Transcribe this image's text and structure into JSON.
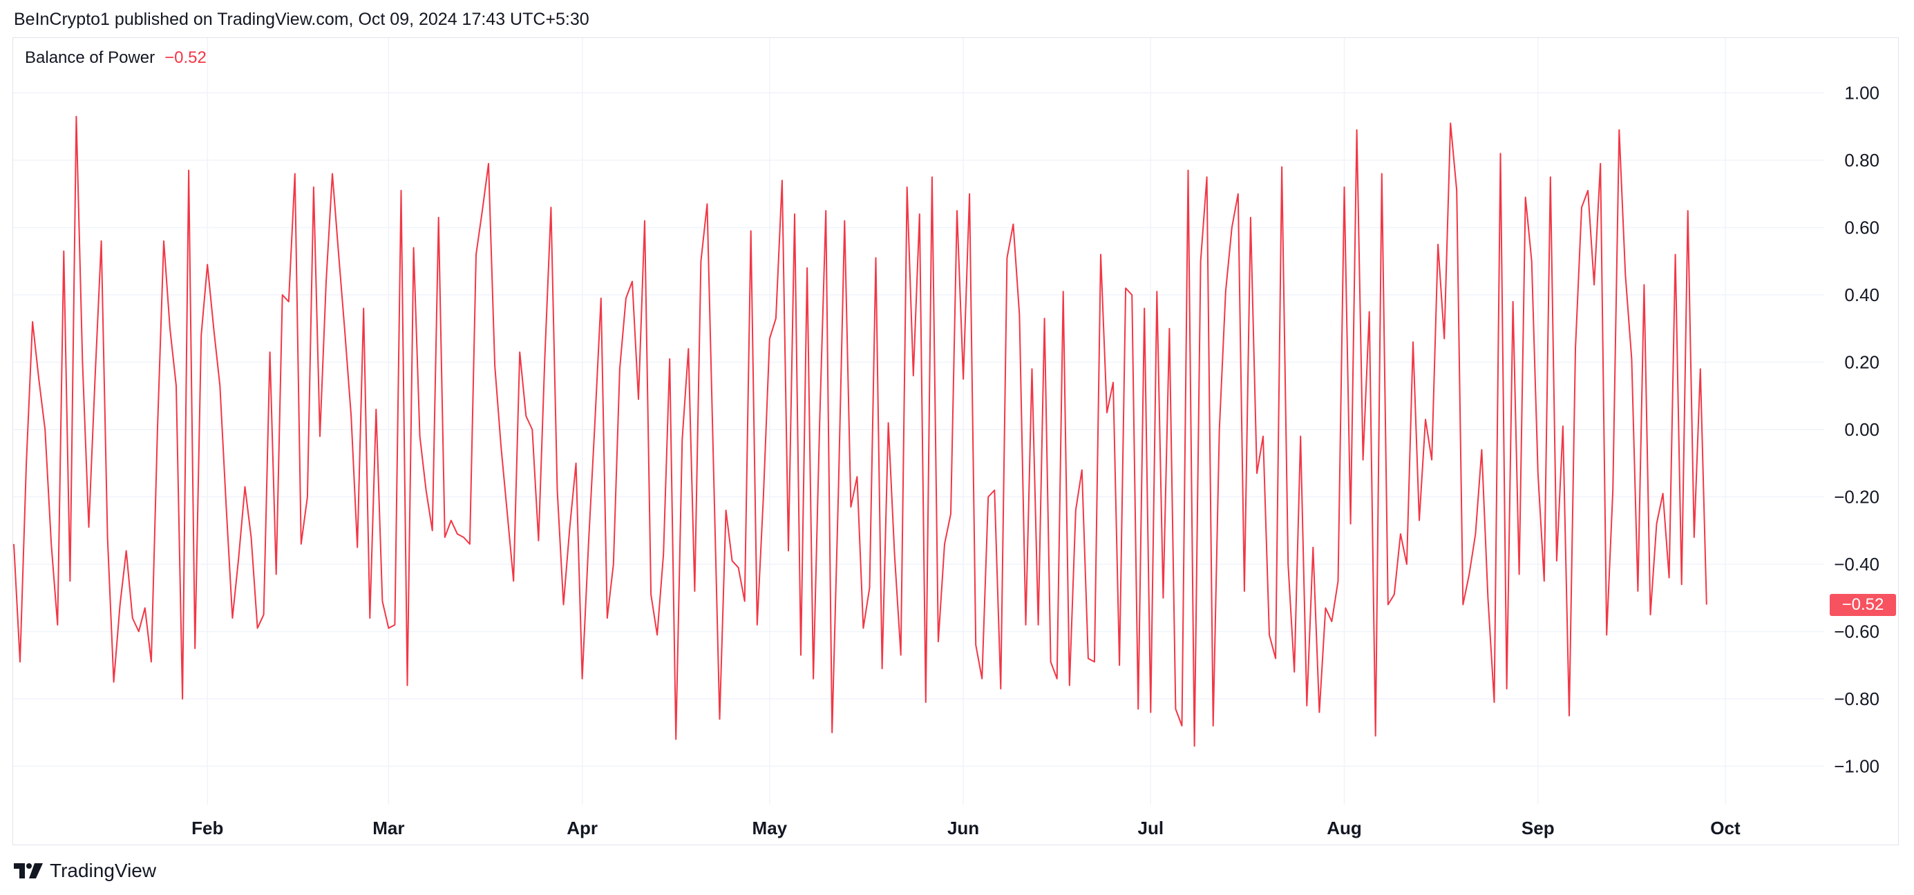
{
  "header": {
    "publisher": "BeInCrypto1 published on TradingView.com, Oct 09, 2024 17:43 UTC+5:30"
  },
  "indicator": {
    "name": "Balance of Power",
    "value": "−0.52"
  },
  "footer": {
    "brand": "TradingView",
    "logo_icon": "tradingview-logo-icon"
  },
  "colors": {
    "line": "#f23645",
    "value_text": "#f23645",
    "grid": "#f0f3fa",
    "tag_bg": "#f7525f"
  },
  "chart_data": {
    "type": "line",
    "title": "",
    "xlabel": "",
    "ylabel": "",
    "ylim": [
      -1.2,
      1.15
    ],
    "y_ticks": [
      1.0,
      0.8,
      0.6,
      0.4,
      0.2,
      0.0,
      -0.2,
      -0.4,
      -0.6,
      -0.8,
      -1.0
    ],
    "y_tick_labels": [
      "1.00",
      "0.80",
      "0.60",
      "0.40",
      "0.20",
      "0.00",
      "−0.20",
      "−0.40",
      "−0.60",
      "−0.80",
      "−1.00"
    ],
    "x_ticks": [
      {
        "label": "Feb",
        "date": "2024-02-01"
      },
      {
        "label": "Mar",
        "date": "2024-03-01"
      },
      {
        "label": "Apr",
        "date": "2024-04-01"
      },
      {
        "label": "May",
        "date": "2024-05-01"
      },
      {
        "label": "Jun",
        "date": "2024-06-01"
      },
      {
        "label": "Jul",
        "date": "2024-07-01"
      },
      {
        "label": "Aug",
        "date": "2024-08-01"
      },
      {
        "label": "Sep",
        "date": "2024-09-01"
      },
      {
        "label": "Oct",
        "date": "2024-10-01"
      }
    ],
    "grid": true,
    "last_value_label": "−0.52",
    "series": [
      {
        "x_start": "2024-01-01",
        "x_step_days": 1,
        "values": [
          -0.34,
          -0.69,
          -0.1,
          0.32,
          0.15,
          0.0,
          -0.34,
          -0.58,
          0.53,
          -0.45,
          0.93,
          0.2,
          -0.29,
          0.15,
          0.56,
          -0.32,
          -0.75,
          -0.52,
          -0.36,
          -0.56,
          -0.6,
          -0.53,
          -0.69,
          0.0,
          0.56,
          0.3,
          0.13,
          -0.8,
          0.77,
          -0.65,
          0.28,
          0.49,
          0.3,
          0.13,
          -0.23,
          -0.56,
          -0.38,
          -0.17,
          -0.32,
          -0.59,
          -0.55,
          0.23,
          -0.43,
          0.4,
          0.38,
          0.76,
          -0.34,
          -0.2,
          0.72,
          -0.02,
          0.44,
          0.76,
          0.52,
          0.29,
          0.04,
          -0.35,
          0.36,
          -0.56,
          0.06,
          -0.51,
          -0.59,
          -0.58,
          0.71,
          -0.76,
          0.54,
          -0.02,
          -0.18,
          -0.3,
          0.63,
          -0.32,
          -0.27,
          -0.31,
          -0.32,
          -0.34,
          0.52,
          0.65,
          0.79,
          0.19,
          -0.05,
          -0.25,
          -0.45,
          0.23,
          0.04,
          0.0,
          -0.33,
          0.21,
          0.66,
          -0.18,
          -0.52,
          -0.29,
          -0.1,
          -0.74,
          -0.34,
          0.01,
          0.39,
          -0.56,
          -0.4,
          0.18,
          0.39,
          0.44,
          0.09,
          0.62,
          -0.49,
          -0.61,
          -0.37,
          0.21,
          -0.92,
          -0.03,
          0.24,
          -0.48,
          0.5,
          0.67,
          -0.1,
          -0.86,
          -0.24,
          -0.39,
          -0.41,
          -0.51,
          0.59,
          -0.58,
          -0.2,
          0.27,
          0.33,
          0.74,
          -0.36,
          0.64,
          -0.67,
          0.48,
          -0.74,
          0.02,
          0.65,
          -0.9,
          -0.19,
          0.62,
          -0.23,
          -0.14,
          -0.59,
          -0.47,
          0.51,
          -0.71,
          0.02,
          -0.37,
          -0.67,
          0.72,
          0.16,
          0.64,
          -0.81,
          0.75,
          -0.63,
          -0.34,
          -0.25,
          0.65,
          0.15,
          0.7,
          -0.64,
          -0.74,
          -0.2,
          -0.18,
          -0.77,
          0.51,
          0.61,
          0.34,
          -0.58,
          0.18,
          -0.58,
          0.33,
          -0.69,
          -0.74,
          0.41,
          -0.76,
          -0.24,
          -0.12,
          -0.68,
          -0.69,
          0.52,
          0.05,
          0.14,
          -0.7,
          0.42,
          0.4,
          -0.83,
          0.36,
          -0.84,
          0.41,
          -0.5,
          0.3,
          -0.83,
          -0.88,
          0.77,
          -0.94,
          0.5,
          0.75,
          -0.88,
          0.0,
          0.41,
          0.6,
          0.7,
          -0.48,
          0.63,
          -0.13,
          -0.02,
          -0.61,
          -0.68,
          0.78,
          -0.4,
          -0.72,
          -0.02,
          -0.82,
          -0.35,
          -0.84,
          -0.53,
          -0.57,
          -0.45,
          0.72,
          -0.28,
          0.89,
          -0.09,
          0.35,
          -0.91,
          0.76,
          -0.52,
          -0.49,
          -0.31,
          -0.4,
          0.26,
          -0.27,
          0.03,
          -0.09,
          0.55,
          0.27,
          0.91,
          0.71,
          -0.52,
          -0.43,
          -0.31,
          -0.06,
          -0.5,
          -0.81,
          0.82,
          -0.77,
          0.38,
          -0.43,
          0.69,
          0.5,
          -0.13,
          -0.45,
          0.75,
          -0.39,
          0.01,
          -0.85,
          0.24,
          0.66,
          0.71,
          0.43,
          0.79,
          -0.61,
          -0.18,
          0.89,
          0.46,
          0.21,
          -0.48,
          0.43,
          -0.55,
          -0.28,
          -0.19,
          -0.44,
          0.52,
          -0.46,
          0.65,
          -0.32,
          0.18,
          -0.52
        ]
      }
    ]
  }
}
